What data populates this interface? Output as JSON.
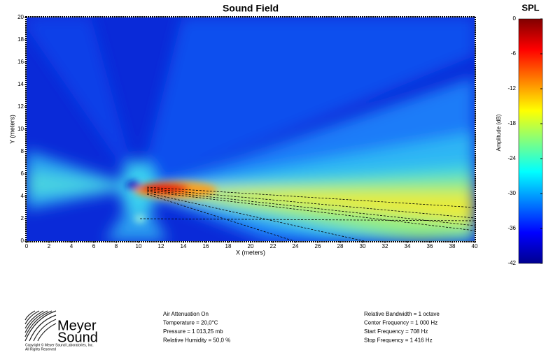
{
  "chart_data": {
    "type": "heatmap",
    "title": "Sound Field",
    "xlabel": "X (meters)",
    "ylabel": "Y (meters)",
    "xlim": [
      0,
      40
    ],
    "xticks": [
      0,
      2,
      4,
      6,
      8,
      10,
      12,
      14,
      16,
      18,
      20,
      22,
      24,
      26,
      28,
      30,
      32,
      34,
      36,
      38,
      40
    ],
    "ylim": [
      0,
      20
    ],
    "yticks": [
      0,
      2,
      4,
      6,
      8,
      10,
      12,
      14,
      16,
      18,
      20
    ],
    "colorbar": {
      "title": "SPL",
      "label": "Amplitude (dB)",
      "lim": [
        -42,
        0
      ],
      "ticks": [
        0,
        -6,
        -12,
        -18,
        -24,
        -30,
        -36,
        -42
      ],
      "colors": [
        "#00008f",
        "#0000ff",
        "#0080ff",
        "#00ffff",
        "#80ff80",
        "#ffff00",
        "#ff8000",
        "#ff0000",
        "#800000"
      ]
    }
  },
  "footer": {
    "logo_top": "Meyer",
    "logo_bottom": "Sound",
    "copyright": "Copyright © Meyer Sound Laboratories, Inc.",
    "rights": "All Rights Reserved",
    "environment": [
      "Air Attenuation On",
      "Temperature = 20,0°C",
      "Pressure = 1 013,25  mb",
      "Relative Humidity = 50,0 %"
    ],
    "frequency": [
      "Relative Bandwidth = 1 octave",
      "Center Frequency = 1 000 Hz",
      "Start Frequency = 708 Hz",
      "Stop Frequency = 1 416 Hz"
    ]
  }
}
